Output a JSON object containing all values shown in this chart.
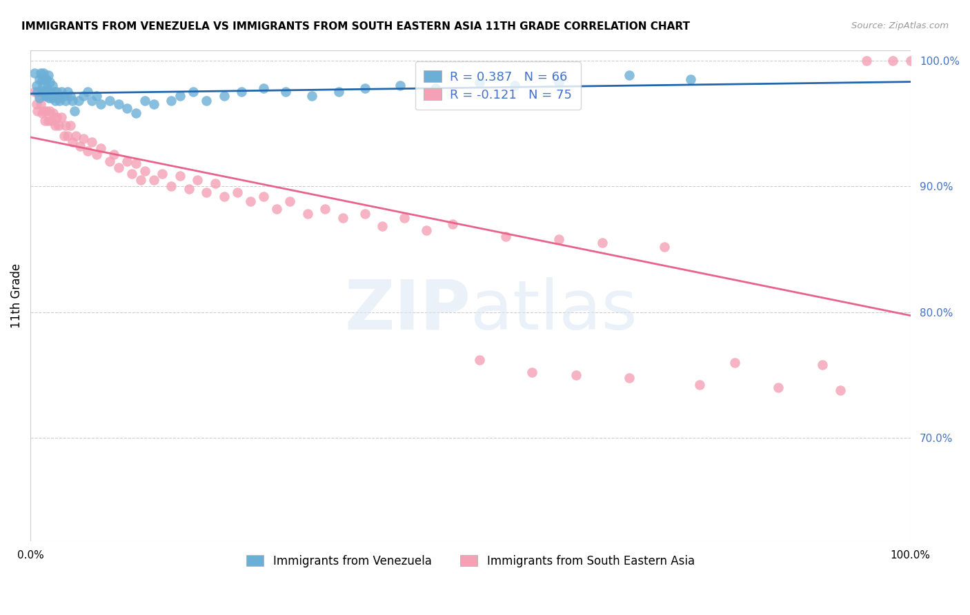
{
  "title": "IMMIGRANTS FROM VENEZUELA VS IMMIGRANTS FROM SOUTH EASTERN ASIA 11TH GRADE CORRELATION CHART",
  "source": "Source: ZipAtlas.com",
  "ylabel": "11th Grade",
  "legend_blue_r": "R = 0.387",
  "legend_blue_n": "N = 66",
  "legend_pink_r": "R = -0.121",
  "legend_pink_n": "N = 75",
  "legend_label_blue": "Immigrants from Venezuela",
  "legend_label_pink": "Immigrants from South Eastern Asia",
  "blue_color": "#6baed6",
  "pink_color": "#f4a0b5",
  "blue_line_color": "#2166ac",
  "pink_line_color": "#e8628a",
  "xlim": [
    0.0,
    1.0
  ],
  "ylim": [
    0.618,
    1.008
  ],
  "yticks": [
    0.7,
    0.8,
    0.9,
    1.0
  ],
  "ytick_labels": [
    "70.0%",
    "80.0%",
    "90.0%",
    "100.0%"
  ],
  "blue_scatter_x": [
    0.005,
    0.007,
    0.008,
    0.01,
    0.01,
    0.012,
    0.013,
    0.013,
    0.014,
    0.015,
    0.015,
    0.016,
    0.017,
    0.018,
    0.018,
    0.019,
    0.02,
    0.02,
    0.021,
    0.022,
    0.023,
    0.024,
    0.025,
    0.026,
    0.027,
    0.028,
    0.03,
    0.032,
    0.033,
    0.035,
    0.038,
    0.04,
    0.042,
    0.045,
    0.048,
    0.05,
    0.055,
    0.06,
    0.065,
    0.07,
    0.075,
    0.08,
    0.09,
    0.1,
    0.11,
    0.12,
    0.13,
    0.14,
    0.16,
    0.17,
    0.185,
    0.2,
    0.22,
    0.24,
    0.265,
    0.29,
    0.32,
    0.35,
    0.38,
    0.42,
    0.46,
    0.51,
    0.55,
    0.6,
    0.68,
    0.75
  ],
  "blue_scatter_y": [
    0.99,
    0.98,
    0.975,
    0.985,
    0.97,
    0.99,
    0.985,
    0.975,
    0.98,
    0.99,
    0.975,
    0.985,
    0.972,
    0.985,
    0.972,
    0.978,
    0.988,
    0.975,
    0.97,
    0.983,
    0.975,
    0.97,
    0.98,
    0.972,
    0.975,
    0.968,
    0.975,
    0.97,
    0.968,
    0.975,
    0.972,
    0.968,
    0.975,
    0.972,
    0.968,
    0.96,
    0.968,
    0.972,
    0.975,
    0.968,
    0.972,
    0.965,
    0.968,
    0.965,
    0.962,
    0.958,
    0.968,
    0.965,
    0.968,
    0.972,
    0.975,
    0.968,
    0.972,
    0.975,
    0.978,
    0.975,
    0.972,
    0.975,
    0.978,
    0.98,
    0.978,
    0.982,
    0.98,
    0.983,
    0.988,
    0.985
  ],
  "pink_scatter_x": [
    0.005,
    0.007,
    0.008,
    0.01,
    0.012,
    0.013,
    0.015,
    0.016,
    0.018,
    0.02,
    0.022,
    0.024,
    0.026,
    0.028,
    0.03,
    0.032,
    0.035,
    0.038,
    0.04,
    0.042,
    0.045,
    0.048,
    0.052,
    0.056,
    0.06,
    0.065,
    0.07,
    0.075,
    0.08,
    0.09,
    0.095,
    0.1,
    0.11,
    0.115,
    0.12,
    0.125,
    0.13,
    0.14,
    0.15,
    0.16,
    0.17,
    0.18,
    0.19,
    0.2,
    0.21,
    0.22,
    0.235,
    0.25,
    0.265,
    0.28,
    0.295,
    0.315,
    0.335,
    0.355,
    0.38,
    0.4,
    0.425,
    0.45,
    0.48,
    0.51,
    0.54,
    0.57,
    0.6,
    0.62,
    0.65,
    0.68,
    0.72,
    0.76,
    0.8,
    0.85,
    0.9,
    0.92,
    0.95,
    0.98,
    1.0
  ],
  "pink_scatter_y": [
    0.975,
    0.965,
    0.96,
    0.972,
    0.965,
    0.958,
    0.96,
    0.952,
    0.96,
    0.952,
    0.96,
    0.952,
    0.958,
    0.948,
    0.955,
    0.948,
    0.955,
    0.94,
    0.948,
    0.94,
    0.948,
    0.935,
    0.94,
    0.932,
    0.938,
    0.928,
    0.935,
    0.925,
    0.93,
    0.92,
    0.925,
    0.915,
    0.92,
    0.91,
    0.918,
    0.905,
    0.912,
    0.905,
    0.91,
    0.9,
    0.908,
    0.898,
    0.905,
    0.895,
    0.902,
    0.892,
    0.895,
    0.888,
    0.892,
    0.882,
    0.888,
    0.878,
    0.882,
    0.875,
    0.878,
    0.868,
    0.875,
    0.865,
    0.87,
    0.762,
    0.86,
    0.752,
    0.858,
    0.75,
    0.855,
    0.748,
    0.852,
    0.742,
    0.76,
    0.74,
    0.758,
    0.738,
    1.0,
    1.0,
    1.0
  ]
}
